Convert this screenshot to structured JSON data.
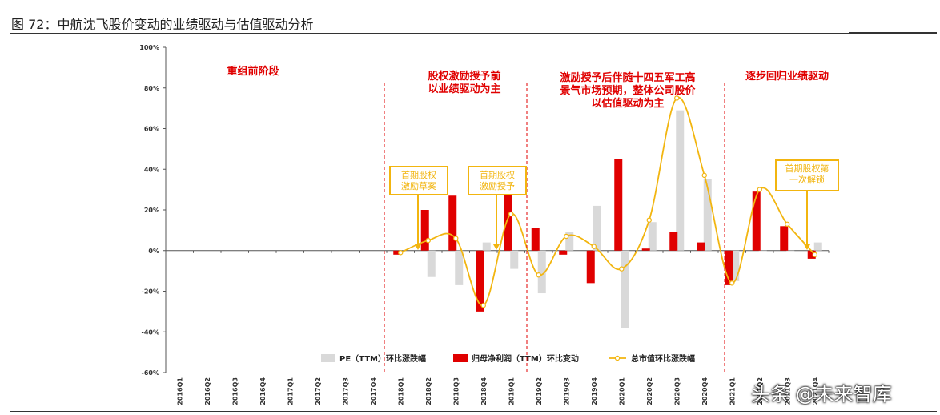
{
  "figure": {
    "title": "图  72：中航沈飞股价变动的业绩驱动与估值驱动分析"
  },
  "watermark": "头条 @未来智库",
  "chart_data": {
    "type": "bar",
    "categories": [
      "2016Q1",
      "2016Q2",
      "2016Q3",
      "2016Q4",
      "2017Q1",
      "2017Q2",
      "2017Q3",
      "2017Q4",
      "2018Q1",
      "2018Q2",
      "2018Q3",
      "2018Q4",
      "2019Q1",
      "2019Q2",
      "2019Q3",
      "2019Q4",
      "2020Q1",
      "2020Q2",
      "2020Q3",
      "2020Q4",
      "2021Q1",
      "2021Q2",
      "2021Q3",
      "2021Q4"
    ],
    "ylim": [
      -60,
      100
    ],
    "yticks": [
      -60,
      -40,
      -20,
      0,
      20,
      40,
      60,
      80,
      100
    ],
    "ytick_labels": [
      "-60%",
      "-40%",
      "-20%",
      "0%",
      "20%",
      "40%",
      "60%",
      "80%",
      "100%"
    ],
    "series": [
      {
        "name": "PE（TTM）环比涨跌幅",
        "kind": "bar",
        "color": "#d9d9d9",
        "values": [
          null,
          null,
          null,
          null,
          null,
          null,
          null,
          null,
          null,
          -13,
          -17,
          4,
          -9,
          -21,
          9,
          22,
          -38,
          14,
          69,
          35,
          -15,
          0,
          0,
          4
        ]
      },
      {
        "name": "归母净利润（TTM）环比变动",
        "kind": "bar",
        "color": "#e00000",
        "values": [
          null,
          null,
          null,
          null,
          null,
          null,
          null,
          null,
          -2,
          20,
          27,
          -30,
          28,
          11,
          -2,
          -16,
          45,
          1,
          9,
          4,
          -17,
          29,
          12,
          -4
        ]
      },
      {
        "name": "总市值环比涨跌幅",
        "kind": "line",
        "color": "#f2b50f",
        "values": [
          null,
          null,
          null,
          null,
          null,
          null,
          null,
          null,
          -1,
          5,
          6,
          -27,
          18,
          -12,
          7,
          2,
          -9,
          15,
          75,
          37,
          -16,
          30,
          13,
          -2
        ]
      }
    ],
    "phases": [
      {
        "label_lines": [
          "重组前阶段"
        ]
      },
      {
        "label_lines": [
          "股权激励授予前",
          "以业绩驱动为主"
        ]
      },
      {
        "label_lines": [
          "激励授予后伴随十四五军工高",
          "景气市场预期，整体公司股价",
          "以估值驱动为主"
        ]
      },
      {
        "label_lines": [
          "逐步回归业绩驱动"
        ]
      }
    ],
    "annotations": [
      {
        "label_lines": [
          "首期股权",
          "激励草案"
        ],
        "category": "2018Q2"
      },
      {
        "label_lines": [
          "首期股权",
          "激励授予"
        ],
        "category": "2019Q1"
      },
      {
        "label_lines": [
          "首期股权第",
          "一次解锁"
        ],
        "category": "2021Q4"
      }
    ],
    "legend": {
      "position": "bottom-center"
    }
  }
}
